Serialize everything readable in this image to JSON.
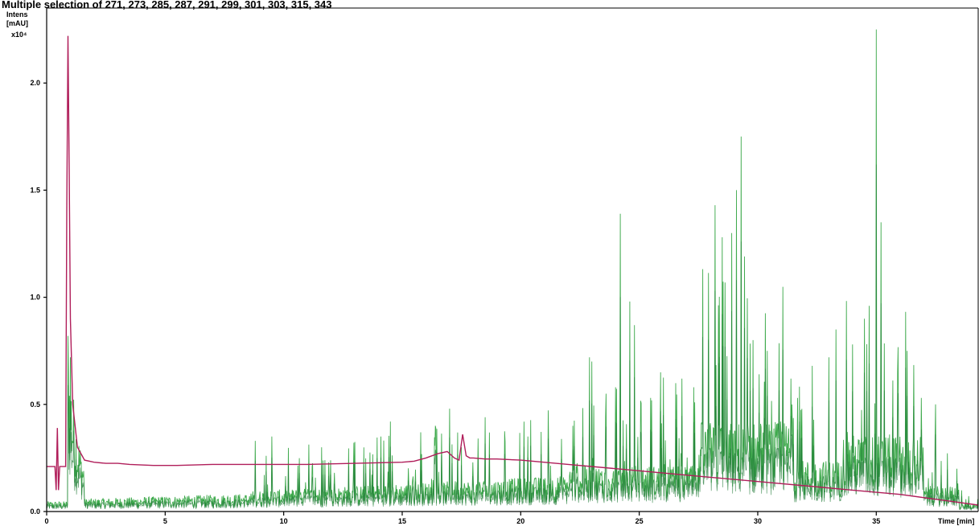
{
  "chart_data": {
    "type": "line",
    "title": "Multiple selection of 271, 273, 285, 287, 291, 299, 301, 303, 315, 343",
    "ylabel_lines": [
      "Intens",
      "[mAU]",
      "x10⁴"
    ],
    "xlabel": "Time [min]",
    "xlim": [
      0,
      39.3
    ],
    "ylim": [
      0,
      2.35
    ],
    "x_ticks": [
      0,
      5,
      10,
      15,
      20,
      25,
      30,
      35
    ],
    "y_ticks": [
      0.0,
      0.5,
      1.0,
      1.5,
      2.0
    ],
    "y_tick_labels": [
      "0.0",
      "0.5",
      "1.0",
      "1.5",
      "2.0"
    ],
    "grid": false,
    "colors": {
      "uv_trace": "#b01e5a",
      "ms_trace_light": "#3faa4d",
      "ms_trace_dark": "#1f7a35",
      "axis": "#000000"
    },
    "series": [
      {
        "key": "uv",
        "x": [
          0.0,
          0.35,
          0.4,
          0.45,
          0.5,
          0.55,
          0.6,
          0.8,
          0.85,
          0.9,
          0.95,
          1.0,
          1.1,
          1.3,
          1.6,
          2.0,
          2.5,
          3.0,
          3.5,
          4.5,
          5.5,
          7.0,
          9.0,
          11.0,
          13.0,
          15.0,
          15.5,
          16.0,
          16.5,
          16.9,
          17.2,
          17.4,
          17.55,
          17.7,
          17.85,
          18.0,
          18.5,
          19.0,
          20.0,
          22.0,
          24.0,
          26.0,
          28.0,
          30.0,
          32.0,
          34.0,
          36.0,
          38.0,
          39.3
        ],
        "y": [
          0.21,
          0.21,
          0.1,
          0.39,
          0.1,
          0.21,
          0.21,
          0.21,
          1.4,
          2.22,
          1.6,
          0.9,
          0.5,
          0.3,
          0.24,
          0.23,
          0.225,
          0.225,
          0.22,
          0.215,
          0.215,
          0.22,
          0.22,
          0.22,
          0.225,
          0.23,
          0.235,
          0.25,
          0.27,
          0.28,
          0.25,
          0.24,
          0.36,
          0.26,
          0.25,
          0.25,
          0.245,
          0.245,
          0.24,
          0.22,
          0.2,
          0.18,
          0.16,
          0.14,
          0.12,
          0.1,
          0.08,
          0.05,
          0.03
        ]
      },
      {
        "key": "ms_peaks",
        "x": [
          0.9,
          1.0,
          8.8,
          9.5,
          11.6,
          14.1,
          14.5,
          16.4,
          17.0,
          17.5,
          18.5,
          20.3,
          22.2,
          22.9,
          23.0,
          23.6,
          24.0,
          24.2,
          24.6,
          24.8,
          25.9,
          26.8,
          27.3,
          28.2,
          28.5,
          28.9,
          29.1,
          29.3,
          29.8,
          30.4,
          31.4,
          32.3,
          33.0,
          33.3,
          34.0,
          34.5,
          34.7,
          35.0,
          35.2,
          35.9,
          36.3,
          36.9,
          37.5,
          38.4
        ],
        "y": [
          0.82,
          0.72,
          0.33,
          0.35,
          0.3,
          0.35,
          0.42,
          0.4,
          0.48,
          0.3,
          0.44,
          0.35,
          0.4,
          0.72,
          0.7,
          0.55,
          0.58,
          1.39,
          0.98,
          0.87,
          0.65,
          0.62,
          0.58,
          1.43,
          1.28,
          1.3,
          1.5,
          1.75,
          0.8,
          0.75,
          0.62,
          0.68,
          0.72,
          0.85,
          0.78,
          0.9,
          0.96,
          2.25,
          1.35,
          0.65,
          0.75,
          0.53,
          0.5,
          0.2
        ]
      }
    ]
  }
}
